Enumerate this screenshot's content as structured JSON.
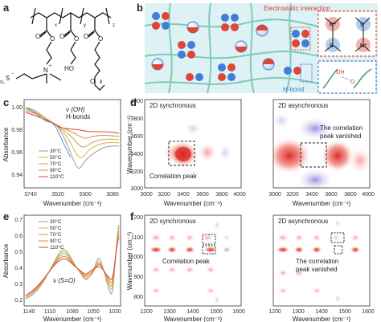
{
  "panel_labels": {
    "a": "a",
    "b": "b",
    "c": "c",
    "d": "d",
    "e": "e",
    "f": "f"
  },
  "panel_a": {
    "so3": "S",
    "o3": "O",
    "n_plus": "N",
    "minus": "−",
    "plus": "+",
    "ho": "HO",
    "sub_x": "x",
    "sub_y": "y",
    "sub_z": "z",
    "sub_8": "8"
  },
  "panel_b": {
    "electrostatic_label": "Electrostatic interaction",
    "hbond_label": "H-bond",
    "colors": {
      "cation": "#e0453a",
      "anion": "#3f7fd6",
      "network": "#7dcab9",
      "bg": "#dff1f5",
      "inset_border_red": "#e24a3f",
      "inset_border_blue": "#3f7fd6"
    }
  },
  "panel_c": {
    "ylabel": "Absorbance",
    "xlabel": "Wavenumber (cm⁻¹)",
    "yticks": [
      "1.00",
      "0.98",
      "0.96",
      "0.94"
    ],
    "xticks": [
      "3740",
      "3520",
      "3300",
      "3080"
    ],
    "annotation1": "ν (OH)",
    "annotation2": "H-bonds",
    "legend": [
      "30°C",
      "50°C",
      "70°C",
      "90°C",
      "110°C"
    ],
    "colors": [
      "#9a9a9a",
      "#e0b43a",
      "#c7a25c",
      "#e08a3a",
      "#d4463a"
    ]
  },
  "panel_e": {
    "ylabel": "Absorbance",
    "xlabel": "Wavenumber (cm⁻¹)",
    "yticks": [
      "0.7",
      "0.6",
      "0.5",
      "0.4",
      "0.3",
      "0.2"
    ],
    "xticks": [
      "1140",
      "1110",
      "1080",
      "1050",
      "1020"
    ],
    "annotation": "ν (S=O)",
    "legend": [
      "30°C",
      "50°C",
      "70°C",
      "90°C",
      "110°C"
    ]
  },
  "panel_d_sync": {
    "title": "2D synchronous",
    "ylabel": "Wavenumber (cm⁻¹)",
    "xlabel": "Wavenumber (cm⁻¹)",
    "yticks": [
      "4000",
      "3800",
      "3600",
      "3400",
      "3200",
      "3000"
    ],
    "xticks": [
      "3000",
      "3200",
      "3400",
      "3600",
      "3800",
      "4000"
    ],
    "annotation": "Correlation peak"
  },
  "panel_d_async": {
    "title": "2D asynchronous",
    "xlabel": "Wavenumber (cm⁻¹)",
    "xticks": [
      "3000",
      "3200",
      "3400",
      "3600",
      "3800",
      "4000"
    ],
    "annotation1": "The correlation",
    "annotation2": "peak vanished"
  },
  "panel_f_sync": {
    "title": "2D synchronous",
    "ylabel": "Wavenumber (cm⁻¹)",
    "xlabel": "Wavenumber (cm⁻¹)",
    "yticks": [
      "1200",
      "1100",
      "1000",
      "900",
      "800"
    ],
    "xticks": [
      "1200",
      "1300",
      "1400",
      "1500",
      "1600"
    ],
    "annotation": "Correlation peak"
  },
  "panel_f_async": {
    "title": "2D asynchronous",
    "xlabel": "Wavenumber (cm⁻¹)",
    "xticks": [
      "1200",
      "1300",
      "1400",
      "1500",
      "1600"
    ],
    "annotation1": "The correlation",
    "annotation2": "peak vanished"
  }
}
